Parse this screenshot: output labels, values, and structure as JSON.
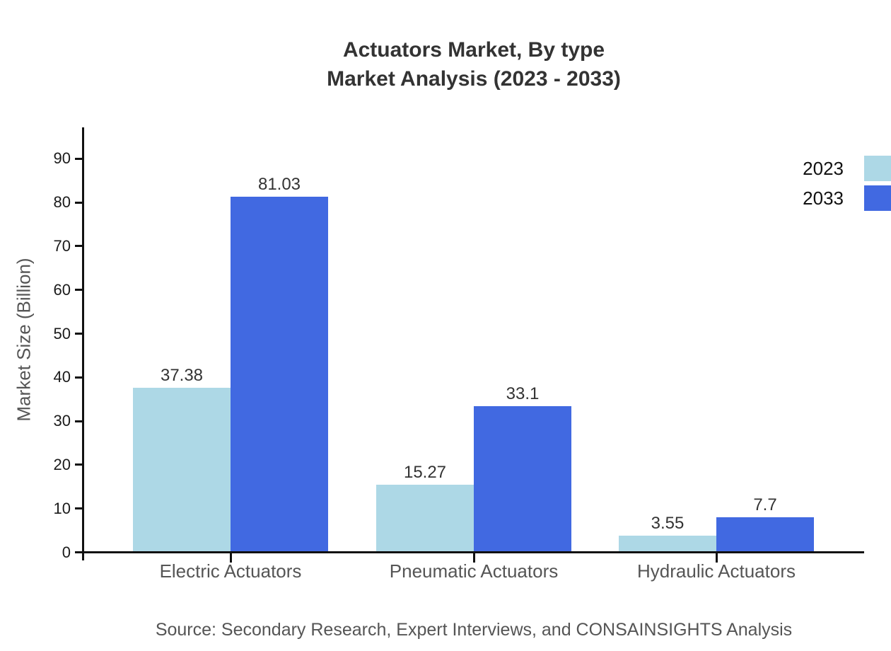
{
  "title_lines": [
    "Actuators Market, By type",
    "Market Analysis (2023 - 2033)"
  ],
  "source_text": "Source: Secondary Research, Expert Interviews, and CONSAINSIGHTS Analysis",
  "colors": {
    "series_2023": "#ADD8E6",
    "series_2033": "#4169E1",
    "axis": "#111111",
    "title_text": "#333333",
    "muted_text": "#555555",
    "background": "#ffffff"
  },
  "chart_data": {
    "type": "bar",
    "title": "Actuators Market, By type Market Analysis (2023 - 2033)",
    "categories": [
      "Electric Actuators",
      "Pneumatic Actuators",
      "Hydraulic Actuators"
    ],
    "series": [
      {
        "name": "2023",
        "color": "#ADD8E6",
        "values": [
          37.38,
          15.27,
          3.55
        ]
      },
      {
        "name": "2033",
        "color": "#4169E1",
        "values": [
          81.03,
          33.1,
          7.7
        ]
      }
    ],
    "xlabel": "",
    "ylabel": "Market Size (Billion)",
    "ylim": [
      0,
      97
    ],
    "yticks": [
      0,
      10,
      20,
      30,
      40,
      50,
      60,
      70,
      80,
      90
    ],
    "grid": false,
    "legend_position": "top-right",
    "value_labels_shown": true
  }
}
